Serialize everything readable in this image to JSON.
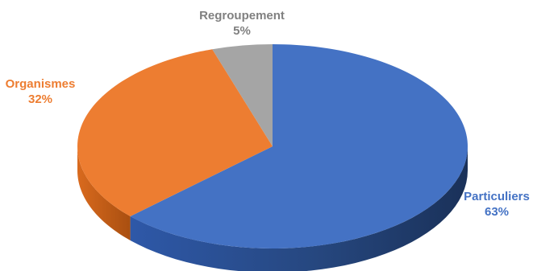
{
  "chart_data": {
    "type": "pie",
    "style": "3d",
    "title": "",
    "categories": [
      "Particuliers",
      "Organismes",
      "Regroupement"
    ],
    "values": [
      63,
      32,
      5
    ],
    "value_labels": [
      "63%",
      "32%",
      "5%"
    ],
    "colors": [
      "#4472C4",
      "#ED7D31",
      "#A5A5A5"
    ],
    "legend": "none",
    "start_angle_deg": 0,
    "direction": "clockwise"
  }
}
